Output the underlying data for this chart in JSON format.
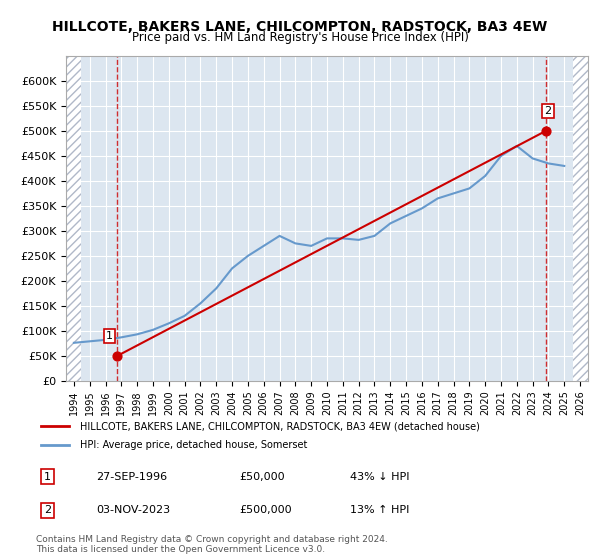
{
  "title": "HILLCOTE, BAKERS LANE, CHILCOMPTON, RADSTOCK, BA3 4EW",
  "subtitle": "Price paid vs. HM Land Registry's House Price Index (HPI)",
  "ylim": [
    0,
    650000
  ],
  "xlim_left": 1993.5,
  "xlim_right": 2026.5,
  "yticks": [
    0,
    50000,
    100000,
    150000,
    200000,
    250000,
    300000,
    350000,
    400000,
    450000,
    500000,
    550000,
    600000
  ],
  "ytick_labels": [
    "£0",
    "£50K",
    "£100K",
    "£150K",
    "£200K",
    "£250K",
    "£300K",
    "£350K",
    "£400K",
    "£450K",
    "£500K",
    "£550K",
    "£600K"
  ],
  "hpi_years": [
    1994,
    1995,
    1996,
    1997,
    1998,
    1999,
    2000,
    2001,
    2002,
    2003,
    2004,
    2005,
    2006,
    2007,
    2008,
    2009,
    2010,
    2011,
    2012,
    2013,
    2014,
    2015,
    2016,
    2017,
    2018,
    2019,
    2020,
    2021,
    2022,
    2023,
    2024,
    2025
  ],
  "hpi_values": [
    76000,
    79000,
    82000,
    87000,
    93000,
    102000,
    115000,
    130000,
    155000,
    185000,
    225000,
    250000,
    270000,
    290000,
    275000,
    270000,
    285000,
    285000,
    282000,
    290000,
    315000,
    330000,
    345000,
    365000,
    375000,
    385000,
    410000,
    450000,
    470000,
    445000,
    435000,
    430000
  ],
  "sale_years": [
    1996.75,
    2023.83
  ],
  "sale_prices": [
    50000,
    500000
  ],
  "sale_labels": [
    "1",
    "2"
  ],
  "vline_years": [
    1996.75,
    2023.83
  ],
  "hatch_left_x": 1993.5,
  "hatch_right_x": 1994.5,
  "red_color": "#cc0000",
  "blue_color": "#6699cc",
  "background_color": "#dce6f0",
  "hatch_color": "#b0b8c8",
  "grid_color": "#ffffff",
  "legend_entry1": "HILLCOTE, BAKERS LANE, CHILCOMPTON, RADSTOCK, BA3 4EW (detached house)",
  "legend_entry2": "HPI: Average price, detached house, Somerset",
  "table_row1": [
    "1",
    "27-SEP-1996",
    "£50,000",
    "43% ↓ HPI"
  ],
  "table_row2": [
    "2",
    "03-NOV-2023",
    "£500,000",
    "13% ↑ HPI"
  ],
  "footnote": "Contains HM Land Registry data © Crown copyright and database right 2024.\nThis data is licensed under the Open Government Licence v3.0.",
  "xtick_years": [
    1994,
    1995,
    1996,
    1997,
    1998,
    1999,
    2000,
    2001,
    2002,
    2003,
    2004,
    2005,
    2006,
    2007,
    2008,
    2009,
    2010,
    2011,
    2012,
    2013,
    2014,
    2015,
    2016,
    2017,
    2018,
    2019,
    2020,
    2021,
    2022,
    2023,
    2024,
    2025,
    2026
  ]
}
